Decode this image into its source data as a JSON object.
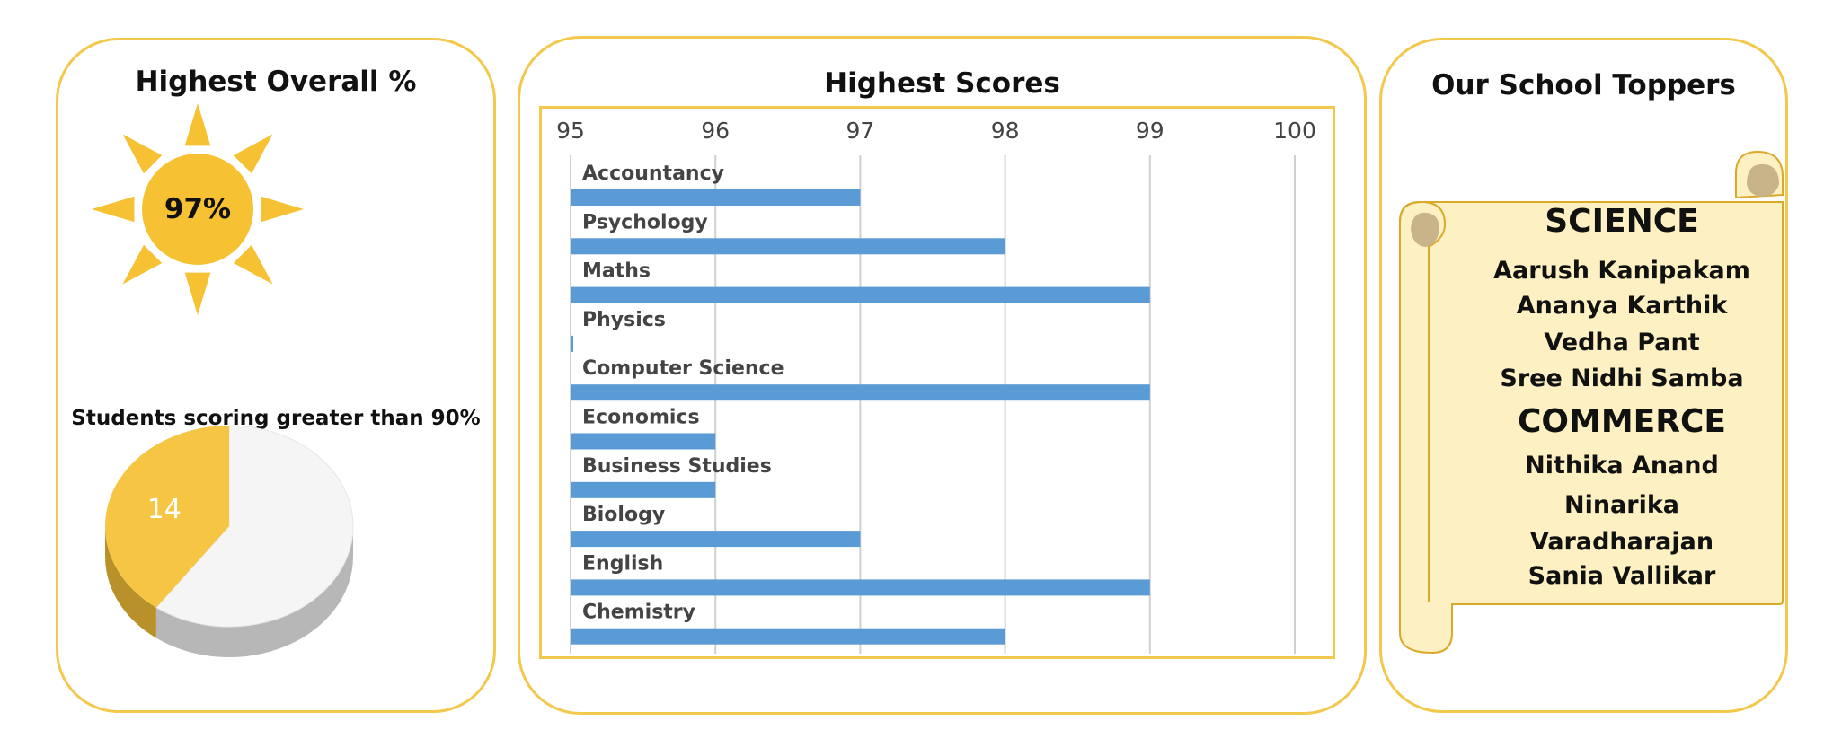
{
  "colors": {
    "accent": "#f2c94c",
    "sun": "#f6c132",
    "bar": "#5b9bd5",
    "pie_gold": "#f6c544",
    "pie_gray": "#f5f5f5",
    "scroll_fill": "#fdf0c2"
  },
  "left_panel": {
    "title": "Highest Overall %",
    "sun_value": "97%",
    "pie_caption": "Students scoring greater than 90%"
  },
  "middle_panel": {
    "title": "Highest Scores"
  },
  "right_panel": {
    "title": "Our School Toppers",
    "science_heading": "SCIENCE",
    "science_names": [
      "Aarush Kanipakam",
      "Ananya Karthik",
      "Vedha Pant",
      "Sree Nidhi Samba"
    ],
    "commerce_heading": "COMMERCE",
    "commerce_names": [
      "Nithika Anand",
      "Ninarika",
      "Varadharajan",
      "Sania Vallikar"
    ]
  },
  "chart_data": [
    {
      "type": "pie",
      "title": "Students scoring greater than 90%",
      "slices": [
        {
          "label": "14",
          "value": 14,
          "color": "#f6c544"
        },
        {
          "label": "",
          "value": 21,
          "color": "#f5f5f5"
        }
      ]
    },
    {
      "type": "bar",
      "orientation": "horizontal",
      "title": "Highest Scores",
      "categories": [
        "Accountancy",
        "Psychology",
        "Maths",
        "Physics",
        "Computer Science",
        "Economics",
        "Business Studies",
        "Biology",
        "English",
        "Chemistry"
      ],
      "values": [
        97,
        98,
        99,
        95,
        99,
        96,
        96,
        97,
        99,
        98
      ],
      "xlim": [
        95,
        100
      ],
      "xticks": [
        "95",
        "96",
        "97",
        "98",
        "99",
        "100"
      ],
      "axis_position": "top",
      "grid": true,
      "legend": "none"
    }
  ]
}
